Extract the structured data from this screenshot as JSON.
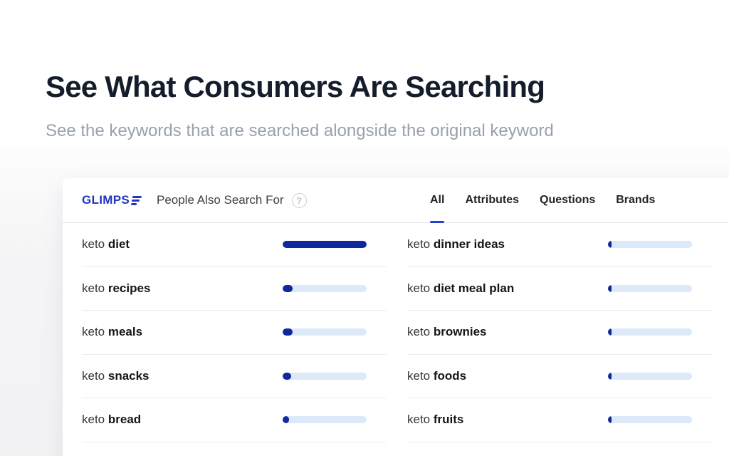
{
  "hero": {
    "title": "See What Consumers Are Searching",
    "subtitle": "See the keywords that are searched alongside the original keyword"
  },
  "widget": {
    "brand": "GLIMPS",
    "brand_icon": "glimpse-logo-bars-icon",
    "title": "People Also Search For",
    "help_label": "?",
    "tabs": [
      {
        "label": "All",
        "active": true
      },
      {
        "label": "Attributes",
        "active": false
      },
      {
        "label": "Questions",
        "active": false
      },
      {
        "label": "Brands",
        "active": false
      }
    ],
    "columns": {
      "left": [
        {
          "prefix": "keto",
          "term": "diet",
          "percent": 100
        },
        {
          "prefix": "keto",
          "term": "recipes",
          "percent": 12
        },
        {
          "prefix": "keto",
          "term": "meals",
          "percent": 12
        },
        {
          "prefix": "keto",
          "term": "snacks",
          "percent": 10
        },
        {
          "prefix": "keto",
          "term": "bread",
          "percent": 8
        }
      ],
      "right": [
        {
          "prefix": "keto",
          "term": "dinner ideas",
          "percent": 4
        },
        {
          "prefix": "keto",
          "term": "diet meal plan",
          "percent": 4
        },
        {
          "prefix": "keto",
          "term": "brownies",
          "percent": 4
        },
        {
          "prefix": "keto",
          "term": "foods",
          "percent": 4
        },
        {
          "prefix": "keto",
          "term": "fruits",
          "percent": 4
        }
      ]
    },
    "colors": {
      "brand_blue": "#2136c7",
      "underline_blue": "#2440cf",
      "bar_fill": "#10289d",
      "bar_track": "#dce9f8"
    }
  }
}
